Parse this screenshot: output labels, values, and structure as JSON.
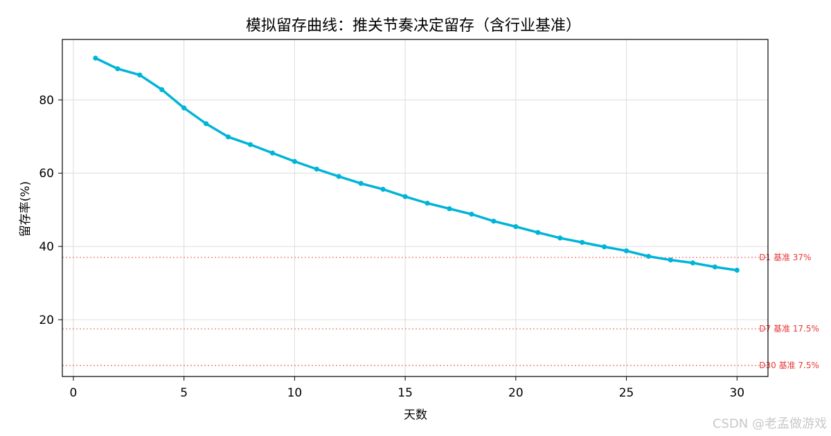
{
  "watermark": "CSDN @老孟做游戏",
  "chart_data": {
    "type": "line",
    "title": "模拟留存曲线：推关节奏决定留存（含行业基准）",
    "xlabel": "天数",
    "ylabel": "留存率(%)",
    "xlim": [
      -0.5,
      31.4
    ],
    "ylim": [
      4.5,
      96.5
    ],
    "xticks": [
      0,
      5,
      10,
      15,
      20,
      25,
      30
    ],
    "yticks": [
      20,
      40,
      60,
      80
    ],
    "grid": true,
    "series": [
      {
        "color": "#00b4d8",
        "x": [
          1,
          2,
          3,
          4,
          5,
          6,
          7,
          8,
          9,
          10,
          11,
          12,
          13,
          14,
          15,
          16,
          17,
          18,
          19,
          20,
          21,
          22,
          23,
          24,
          25,
          26,
          27,
          28,
          29,
          30
        ],
        "y": [
          91.4,
          88.5,
          86.8,
          82.8,
          77.8,
          73.5,
          69.9,
          67.8,
          65.5,
          63.2,
          61.1,
          59.1,
          57.2,
          55.6,
          53.6,
          51.8,
          50.3,
          48.8,
          46.9,
          45.4,
          43.8,
          42.3,
          41.1,
          39.9,
          38.8,
          37.3,
          36.3,
          35.5,
          34.4,
          33.5
        ]
      }
    ],
    "reference_lines": [
      {
        "y": 37,
        "label": "D1 基准 37%",
        "color": "#e53935"
      },
      {
        "y": 17.5,
        "label": "D7 基准 17.5%",
        "color": "#e53935"
      },
      {
        "y": 7.5,
        "label": "D30 基准 7.5%",
        "color": "#e53935"
      }
    ]
  }
}
